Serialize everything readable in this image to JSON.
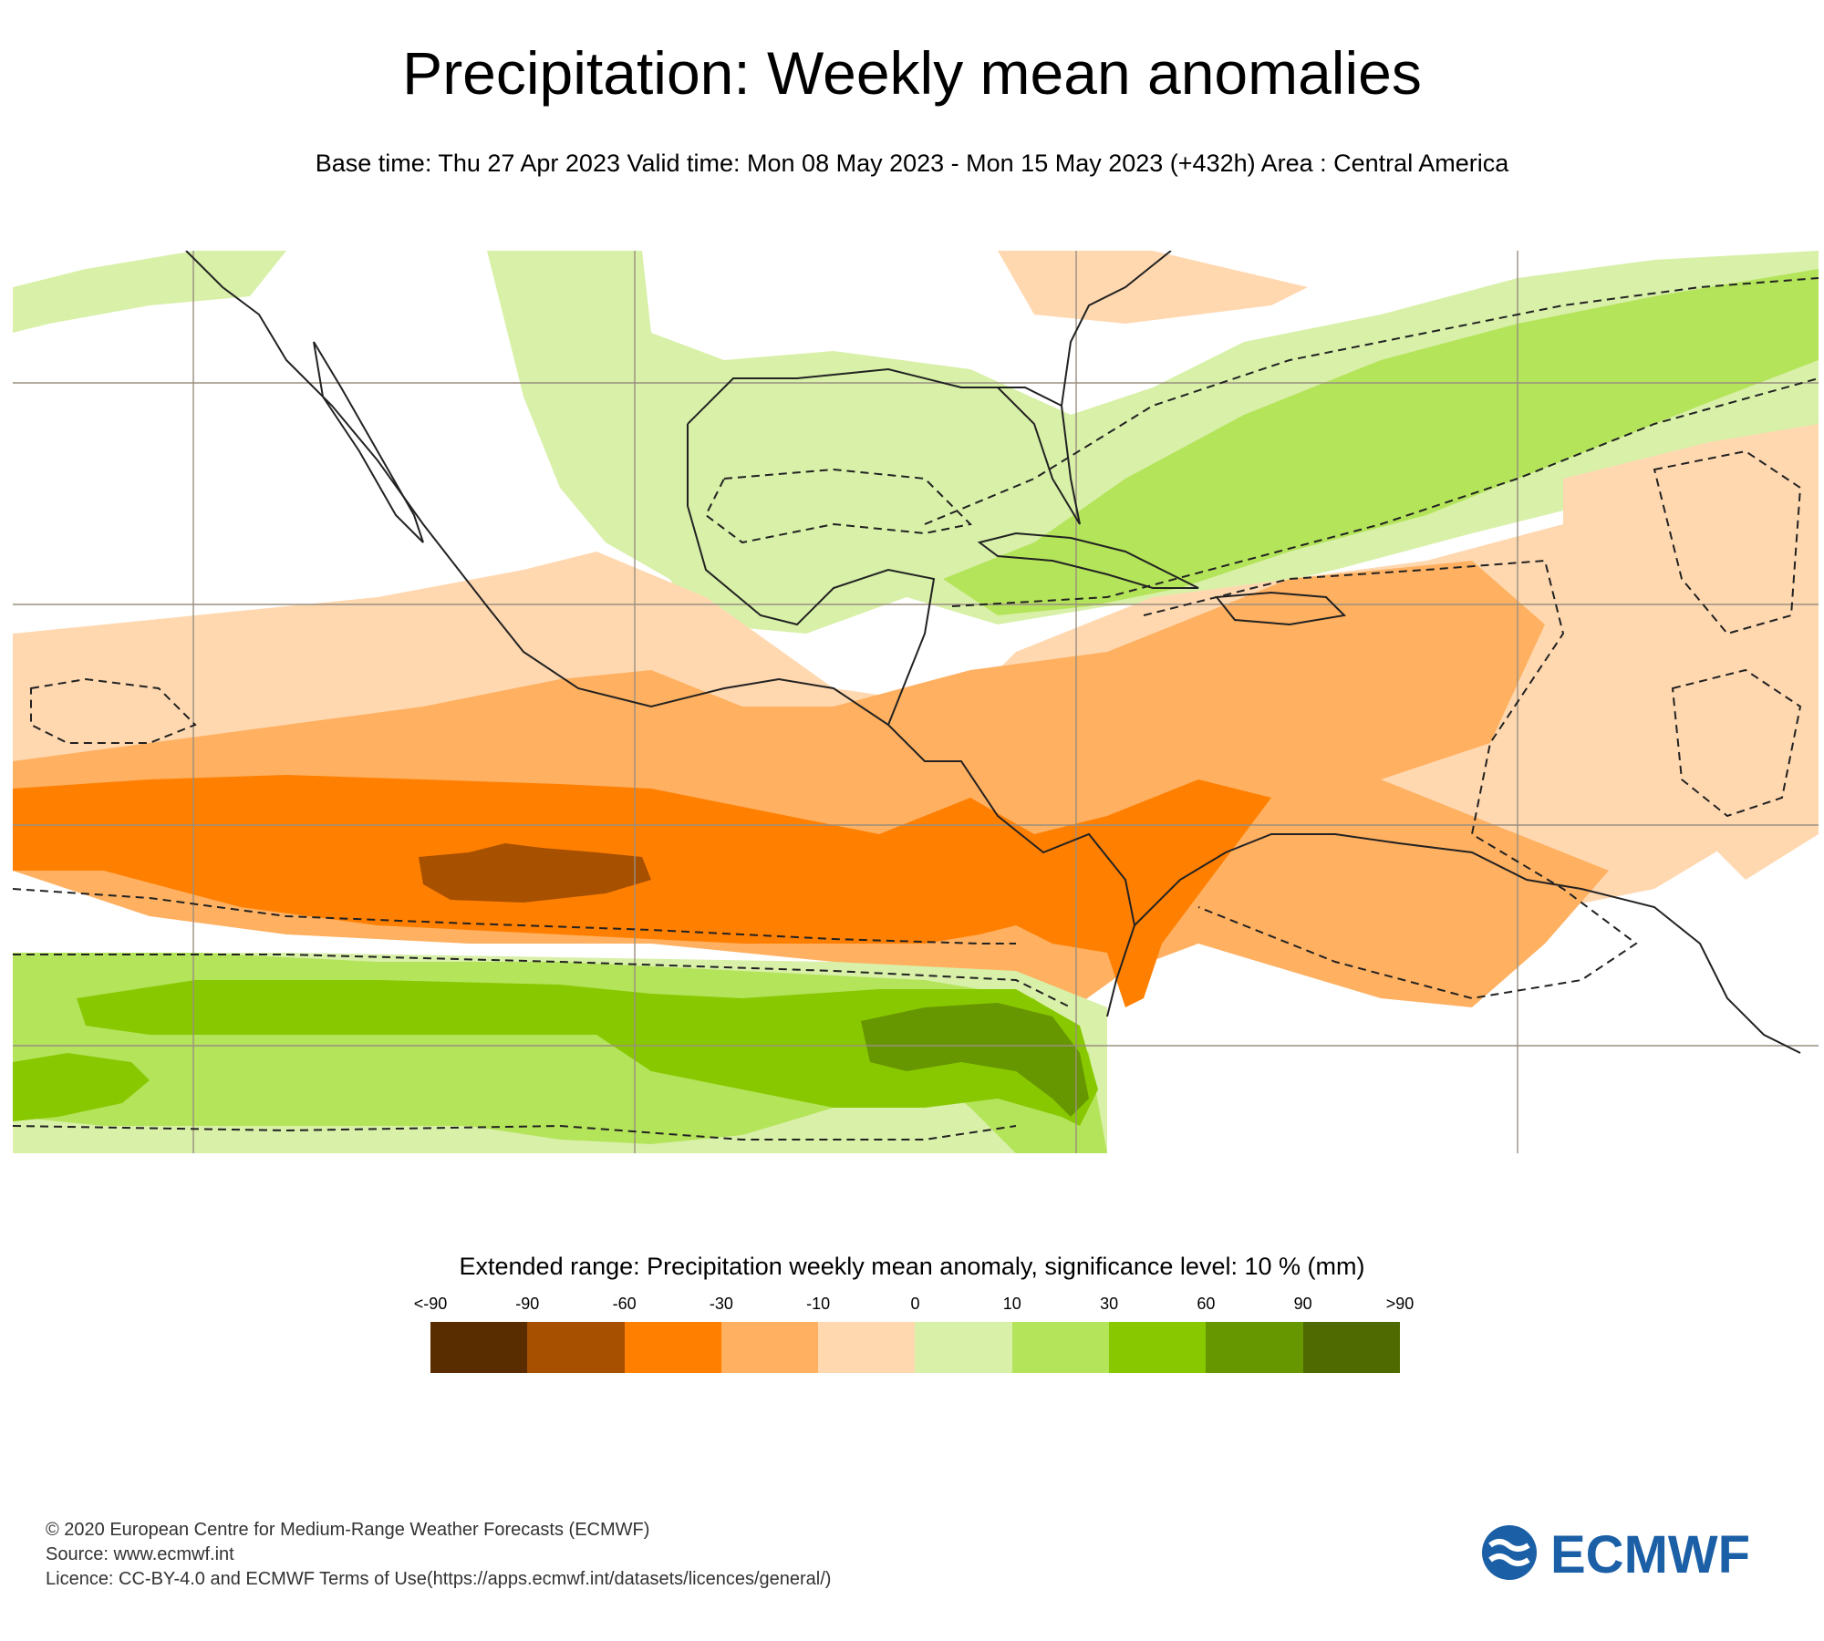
{
  "title": "Precipitation: Weekly mean anomalies",
  "subtitle": "Base time: Thu 27 Apr 2023 Valid time: Mon 08 May 2023 - Mon 15 May 2023 (+432h) Area : Central America",
  "legend": {
    "title": "Extended range: Precipitation weekly mean anomaly, significance level: 10 % (mm)",
    "ticks": [
      "<-90",
      "-90",
      "-60",
      "-30",
      "-10",
      "0",
      "10",
      "30",
      "60",
      "90",
      ">90"
    ],
    "colors": [
      "#5a2d00",
      "#a65000",
      "#ff7f00",
      "#ffb060",
      "#ffd8b0",
      "#d8f0a8",
      "#b4e45a",
      "#88c800",
      "#669600",
      "#4e6a00"
    ]
  },
  "footer": {
    "copyright": "© 2020 European Centre for Medium-Range Weather Forecasts (ECMWF)",
    "source": "Source: www.ecmwf.int",
    "licence": "Licence: CC-BY-4.0 and ECMWF Terms of Use(https://apps.ecmwf.int/datasets/licences/general/)"
  },
  "logo": {
    "text": "ECMWF",
    "color": "#1b5fa6"
  }
}
